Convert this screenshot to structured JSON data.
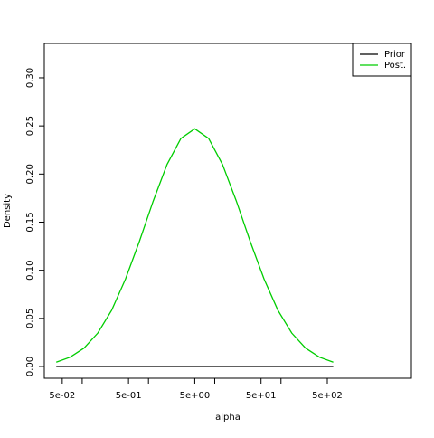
{
  "chart_data": {
    "type": "line",
    "xlabel": "alpha",
    "ylabel": "Density",
    "log_x": true,
    "x": [
      0.0406,
      0.0658,
      0.1064,
      0.1722,
      0.2786,
      0.4508,
      0.7295,
      1.18,
      1.91,
      3.09,
      5.0,
      8.091,
      13.09,
      21.18,
      34.28,
      55.46,
      89.74,
      145.2,
      235.0,
      380.2,
      615.2
    ],
    "series": [
      {
        "name": "Prior",
        "color": "#000000",
        "values": [
          0,
          0,
          0,
          0,
          0,
          0,
          0,
          0,
          0,
          0,
          0,
          0,
          0,
          0,
          0,
          0,
          0,
          0,
          0,
          0,
          0
        ]
      },
      {
        "name": "Post.",
        "color": "#00cd00",
        "values": [
          0.0045,
          0.0097,
          0.0191,
          0.0348,
          0.0585,
          0.091,
          0.13,
          0.172,
          0.21,
          0.237,
          0.247,
          0.237,
          0.21,
          0.172,
          0.13,
          0.091,
          0.0585,
          0.0348,
          0.0191,
          0.0097,
          0.0045
        ]
      }
    ],
    "xlim": [
      0.0268,
      9290
    ],
    "ylim": [
      -0.0122,
      0.3357
    ],
    "xticks": [
      {
        "value": 0.05,
        "label": "5e-02"
      },
      {
        "value": 0.5,
        "label": "5e-01"
      },
      {
        "value": 5,
        "label": "5e+00"
      },
      {
        "value": 50,
        "label": "5e+01"
      },
      {
        "value": 500,
        "label": "5e+02"
      }
    ],
    "minor_xticks": [
      0.1,
      1,
      10,
      100
    ],
    "yticks": [
      {
        "value": 0,
        "label": "0.00"
      },
      {
        "value": 0.05,
        "label": "0.05"
      },
      {
        "value": 0.1,
        "label": "0.10"
      },
      {
        "value": 0.15,
        "label": "0.15"
      },
      {
        "value": 0.2,
        "label": "0.20"
      },
      {
        "value": 0.25,
        "label": "0.25"
      },
      {
        "value": 0.3,
        "label": "0.30"
      }
    ],
    "legend": "top-right"
  }
}
